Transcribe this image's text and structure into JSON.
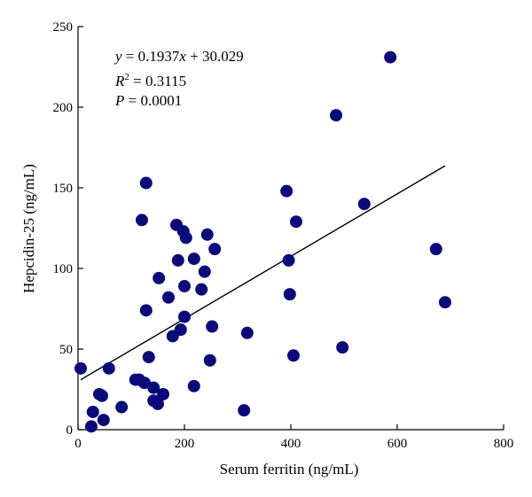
{
  "chart_data": {
    "type": "scatter",
    "xlabel": "Serum ferritin (ng/mL)",
    "ylabel": "Hepcidin-25 (ng/mL)",
    "xlim": [
      0,
      800
    ],
    "ylim": [
      0,
      250
    ],
    "xticks": [
      "0",
      "200",
      "400",
      "600",
      "800"
    ],
    "yticks": [
      "0",
      "50",
      "100",
      "150",
      "200",
      "250"
    ],
    "grid": false,
    "legend": "none",
    "point_color": "#0a0a78",
    "annotations": {
      "eq_y": "y",
      "eq_rest": " = 0.1937",
      "eq_x": "x",
      "eq_tail": " + 30.029",
      "r2_r": "R",
      "r2_sup": "2",
      "r2_rest": " = 0.3115",
      "p_p": "P",
      "p_rest": " = 0.0001"
    },
    "fit": {
      "slope": 0.1937,
      "intercept": 30.029,
      "x_range": [
        5,
        690
      ]
    },
    "points": [
      [
        5,
        38
      ],
      [
        25,
        2
      ],
      [
        28,
        11
      ],
      [
        40,
        22
      ],
      [
        45,
        21
      ],
      [
        48,
        6
      ],
      [
        58,
        38
      ],
      [
        82,
        14
      ],
      [
        108,
        31
      ],
      [
        115,
        31
      ],
      [
        120,
        130
      ],
      [
        125,
        29
      ],
      [
        128,
        153
      ],
      [
        128,
        74
      ],
      [
        133,
        45
      ],
      [
        142,
        26
      ],
      [
        142,
        18
      ],
      [
        150,
        16
      ],
      [
        152,
        94
      ],
      [
        160,
        22
      ],
      [
        170,
        82
      ],
      [
        178,
        58
      ],
      [
        185,
        127
      ],
      [
        188,
        105
      ],
      [
        193,
        62
      ],
      [
        198,
        123
      ],
      [
        200,
        89
      ],
      [
        200,
        70
      ],
      [
        203,
        119
      ],
      [
        218,
        106
      ],
      [
        218,
        27
      ],
      [
        232,
        87
      ],
      [
        238,
        98
      ],
      [
        243,
        121
      ],
      [
        248,
        43
      ],
      [
        252,
        64
      ],
      [
        257,
        112
      ],
      [
        312,
        12
      ],
      [
        318,
        60
      ],
      [
        392,
        148
      ],
      [
        396,
        105
      ],
      [
        398,
        84
      ],
      [
        405,
        46
      ],
      [
        410,
        129
      ],
      [
        485,
        195
      ],
      [
        497,
        51
      ],
      [
        538,
        140
      ],
      [
        587,
        231
      ],
      [
        673,
        112
      ],
      [
        690,
        79
      ]
    ]
  }
}
